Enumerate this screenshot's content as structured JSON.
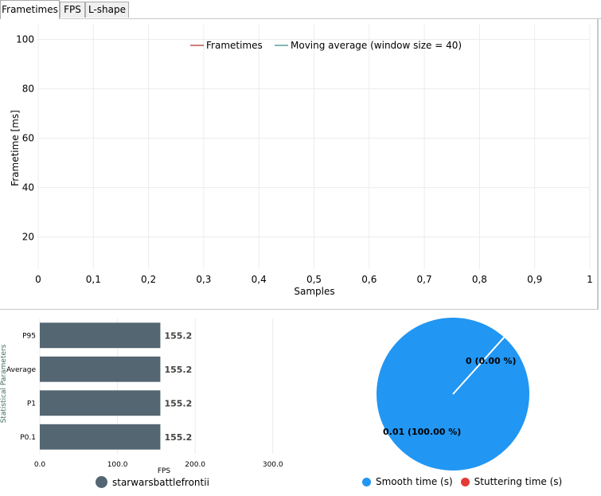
{
  "tabs": [
    {
      "label": "Frametimes",
      "active": true
    },
    {
      "label": "FPS",
      "active": false
    },
    {
      "label": "L-shape",
      "active": false
    }
  ],
  "chart_data": [
    {
      "type": "line",
      "title": "",
      "xlabel": "Samples",
      "ylabel": "Frametime [ms]",
      "xlim": [
        0,
        1
      ],
      "ylim": [
        7,
        106
      ],
      "x_ticks": [
        "0",
        "0,1",
        "0,2",
        "0,3",
        "0,4",
        "0,5",
        "0,6",
        "0,7",
        "0,8",
        "0,9",
        "1"
      ],
      "y_ticks": [
        20,
        40,
        60,
        80,
        100
      ],
      "grid": true,
      "legend_position": "top",
      "series": [
        {
          "name": "Frametimes",
          "color": "#c05050",
          "values": []
        },
        {
          "name": "Moving average (window size = 40)",
          "color": "#5a9e9e",
          "values": []
        }
      ]
    },
    {
      "type": "bar",
      "orientation": "horizontal",
      "xlabel": "FPS",
      "ylabel": "Statistical Parameters",
      "categories": [
        "P95",
        "Average",
        "P1",
        "P0.1"
      ],
      "values": [
        155.2,
        155.2,
        155.2,
        155.2
      ],
      "value_labels": [
        "155.2",
        "155.2",
        "155.2",
        "155.2"
      ],
      "xlim": [
        0,
        330
      ],
      "x_ticks": [
        "0.0",
        "100.0",
        "200.0",
        "300.0"
      ],
      "bar_color": "#546672",
      "legend": [
        {
          "name": "starwarsbattlefrontii",
          "color": "#546672"
        }
      ]
    },
    {
      "type": "pie",
      "slices": [
        {
          "name": "Smooth time (s)",
          "value": 0.01,
          "percent": 100.0,
          "label": "0.01 (100.00 %)",
          "color": "#2196f3"
        },
        {
          "name": "Stuttering time (s)",
          "value": 0,
          "percent": 0.0,
          "label": "0 (0.00 %)",
          "color": "#e53935"
        }
      ],
      "legend": [
        {
          "name": "Smooth time (s)",
          "color": "#2196f3"
        },
        {
          "name": "Stuttering time (s)",
          "color": "#e53935"
        }
      ]
    }
  ]
}
